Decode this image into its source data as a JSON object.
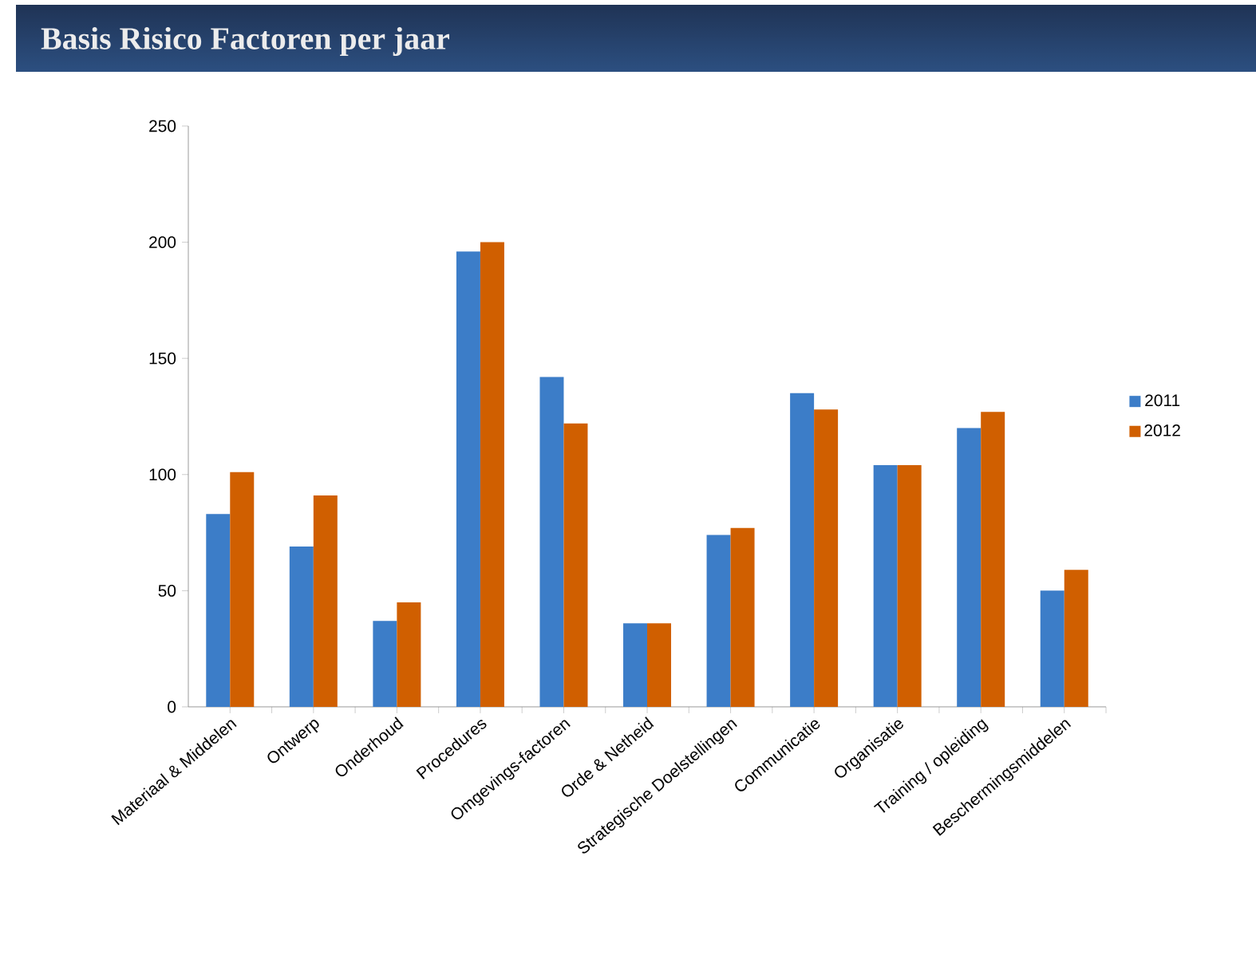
{
  "chart_data": {
    "type": "bar",
    "title": "Basis Risico Factoren per jaar",
    "categories": [
      "Materiaal & Middelen",
      "Ontwerp",
      "Onderhoud",
      "Procedures",
      "Omgevings-factoren",
      "Orde & Netheid",
      "Strategische Doelstellingen",
      "Communicatie",
      "Organisatie",
      "Training / opleiding",
      "Beschermingsmiddelen"
    ],
    "series": [
      {
        "name": "2011",
        "color": "#3c7dc8",
        "values": [
          83,
          69,
          37,
          196,
          142,
          36,
          74,
          135,
          104,
          120,
          50
        ]
      },
      {
        "name": "2012",
        "color": "#d05f00",
        "values": [
          101,
          91,
          45,
          200,
          122,
          36,
          77,
          128,
          104,
          127,
          59
        ]
      }
    ],
    "ylim": [
      0,
      250
    ],
    "yticks": [
      0,
      50,
      100,
      150,
      200,
      250
    ],
    "legend": "right"
  }
}
